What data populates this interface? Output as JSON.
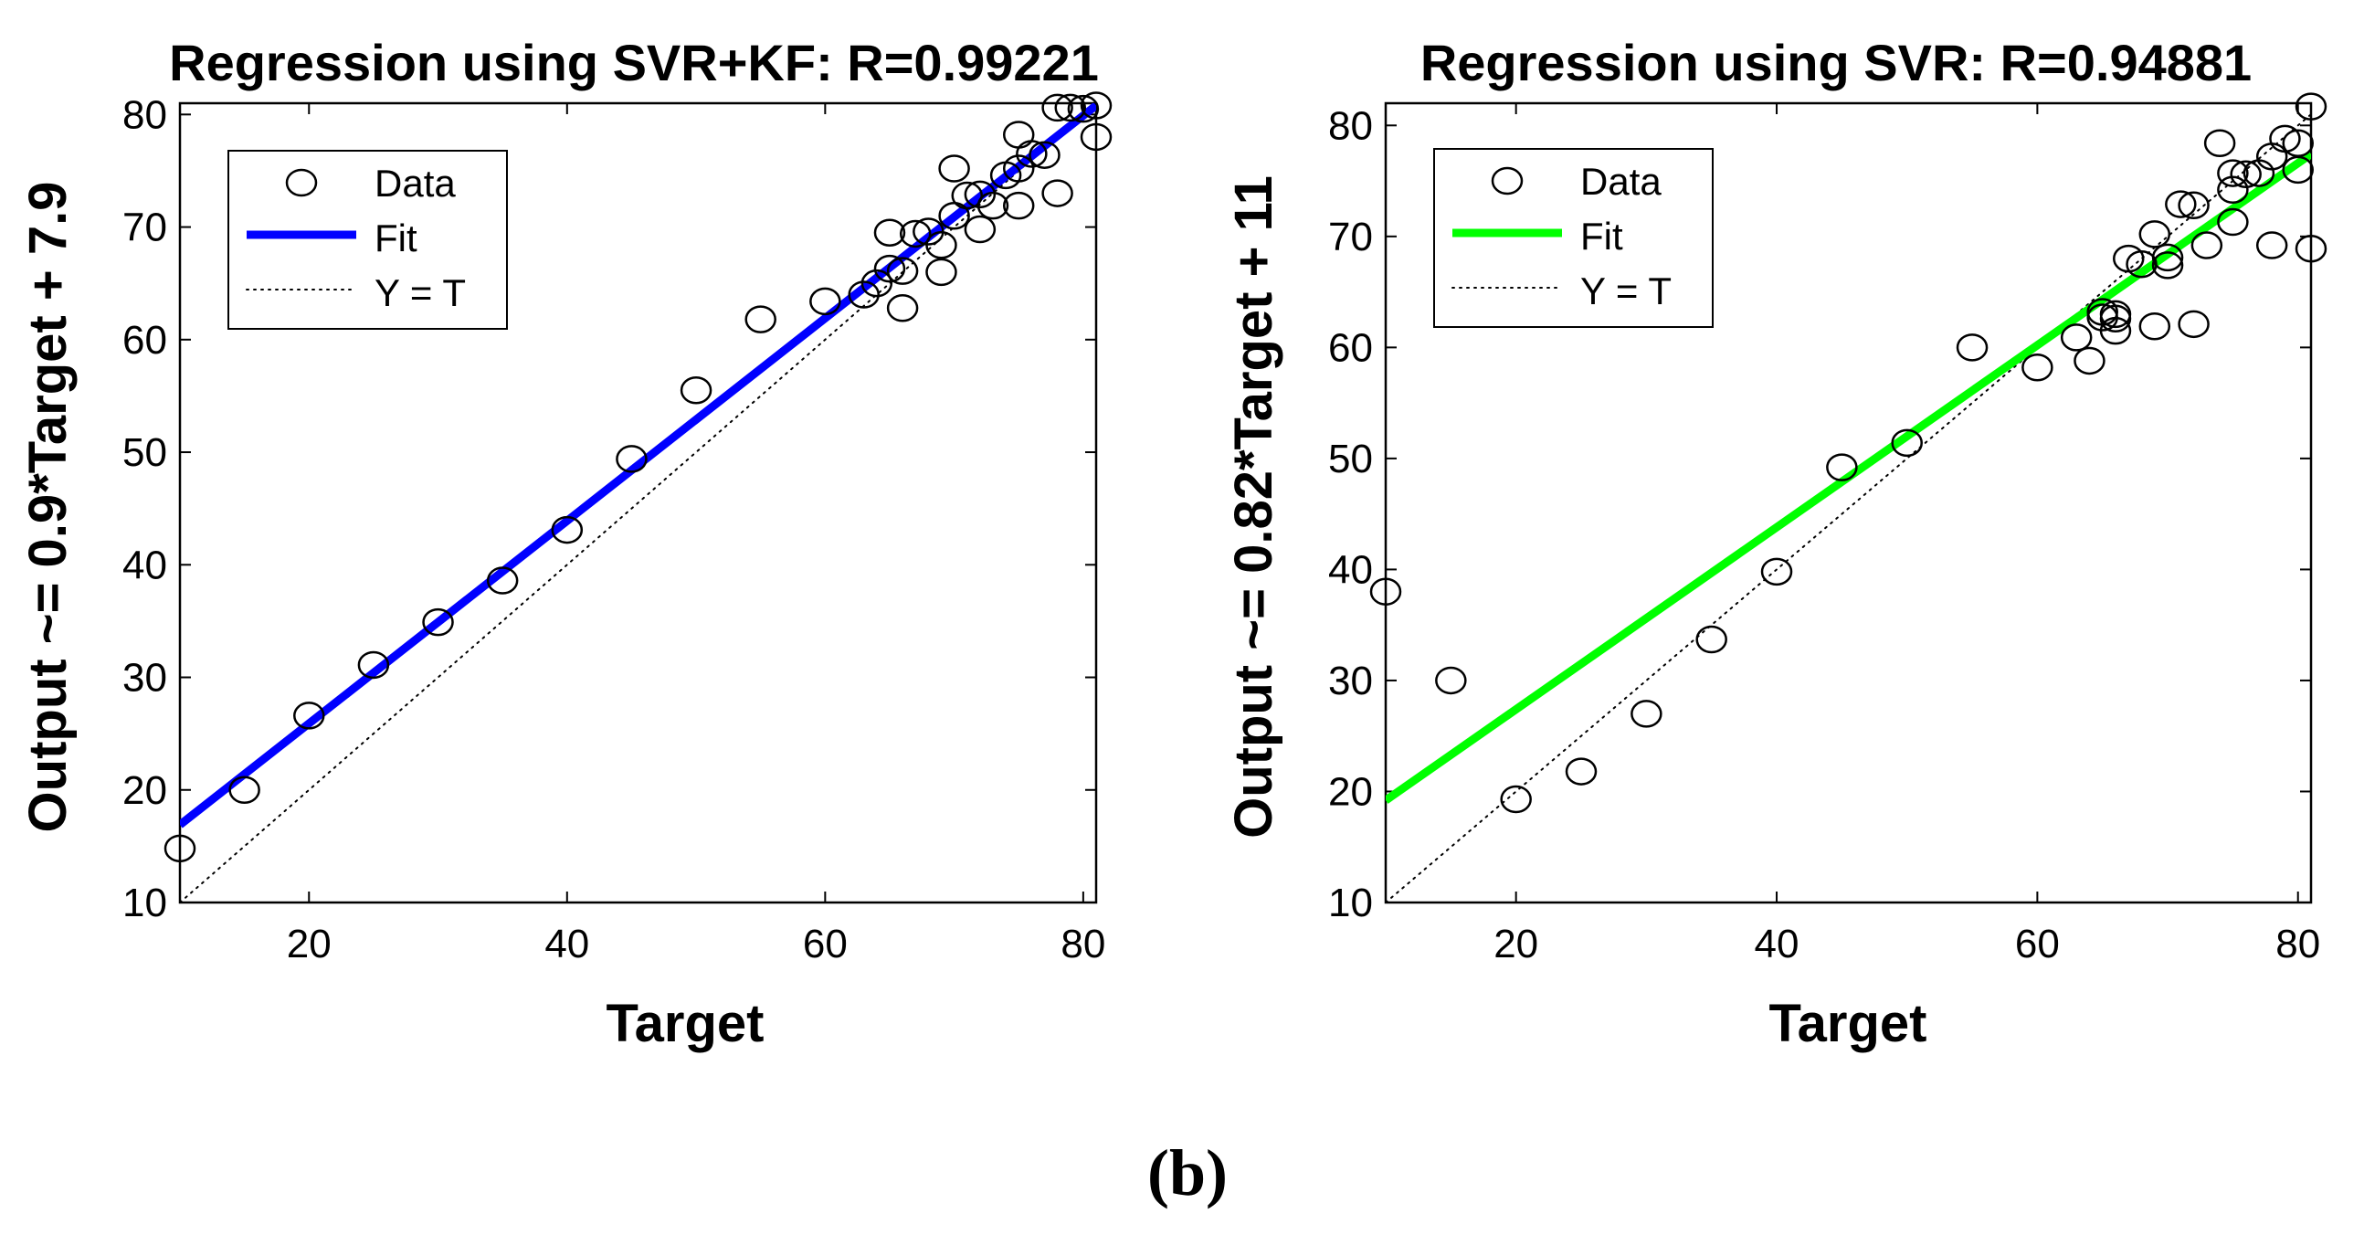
{
  "figure_caption": "(b)",
  "chart_data": [
    {
      "type": "scatter",
      "title": "Regression using SVR+KF: R=0.99221",
      "xlabel": "Target",
      "ylabel": "Output ~= 0.9*Target + 7.9",
      "xlim": [
        10,
        81
      ],
      "ylim": [
        10,
        81
      ],
      "xticks": [
        20,
        40,
        60,
        80
      ],
      "yticks": [
        10,
        20,
        30,
        40,
        50,
        60,
        70,
        80
      ],
      "fit": {
        "slope": 0.9,
        "intercept": 7.9,
        "color": "#0000ff"
      },
      "identity_line": true,
      "legend": {
        "position": "top-left",
        "entries": [
          "Data",
          "Fit",
          "Y = T"
        ]
      },
      "series": [
        {
          "name": "Data",
          "x": [
            10,
            15,
            20,
            25,
            30,
            35,
            40,
            45,
            50,
            55,
            60,
            63,
            64,
            65,
            65,
            66,
            66,
            67,
            68,
            69,
            69,
            70,
            70,
            71,
            72,
            72,
            73,
            74,
            75,
            75,
            75,
            76,
            77,
            78,
            78,
            79,
            80,
            81,
            81
          ],
          "y": [
            14.8,
            20,
            26.6,
            31.1,
            34.9,
            38.6,
            43.1,
            49.4,
            55.5,
            61.8,
            63.4,
            64,
            65,
            66.3,
            69.5,
            62.8,
            66.1,
            69.4,
            69.6,
            66,
            68.4,
            71,
            75.2,
            72.8,
            69.8,
            72.9,
            71.9,
            74.6,
            71.9,
            75.2,
            78.2,
            76.5,
            76.4,
            73,
            80.6,
            80.6,
            80.5,
            78,
            80.8
          ]
        }
      ]
    },
    {
      "type": "scatter",
      "title": "Regression using SVR: R=0.94881",
      "xlabel": "Target",
      "ylabel": "Output ~= 0.82*Target + 11",
      "xlim": [
        10,
        81
      ],
      "ylim": [
        10,
        82
      ],
      "xticks": [
        20,
        40,
        60,
        80
      ],
      "yticks": [
        10,
        20,
        30,
        40,
        50,
        60,
        70,
        80
      ],
      "fit": {
        "slope": 0.82,
        "intercept": 11,
        "color": "#00ff00"
      },
      "identity_line": true,
      "legend": {
        "position": "top-left",
        "entries": [
          "Data",
          "Fit",
          "Y = T"
        ]
      },
      "series": [
        {
          "name": "Data",
          "x": [
            10,
            15,
            20,
            25,
            30,
            35,
            40,
            45,
            50,
            55,
            60,
            63,
            64,
            65,
            65,
            66,
            66,
            66,
            67,
            68,
            69,
            69,
            70,
            70,
            71,
            72,
            72,
            73,
            74,
            75,
            75,
            75,
            76,
            77,
            78,
            78,
            79,
            80,
            80,
            81,
            81
          ],
          "y": [
            38,
            30,
            19.3,
            21.8,
            27,
            33.7,
            39.8,
            49.2,
            51.4,
            60,
            58.2,
            60.9,
            58.8,
            63.2,
            62.7,
            61.5,
            62.6,
            63,
            68,
            67.5,
            61.9,
            70.2,
            67.4,
            68.1,
            72.9,
            62.1,
            72.8,
            69.2,
            78.4,
            71.3,
            74.2,
            75.7,
            75.6,
            75.7,
            69.2,
            77.2,
            78.8,
            78.4,
            76,
            81.7,
            68.9
          ]
        }
      ]
    }
  ]
}
